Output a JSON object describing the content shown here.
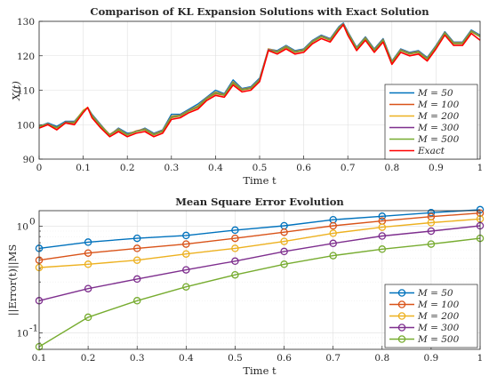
{
  "chart_data": [
    {
      "type": "line",
      "title": "Comparison of KL Expansion Solutions with Exact Solution",
      "xlabel": "Time t",
      "ylabel": "X(t)",
      "xlim": [
        0,
        1
      ],
      "ylim": [
        90,
        130
      ],
      "x_ticks": [
        "0",
        "0.1",
        "0.2",
        "0.3",
        "0.4",
        "0.5",
        "0.6",
        "0.7",
        "0.8",
        "0.9",
        "1"
      ],
      "y_ticks": [
        "90",
        "100",
        "110",
        "120",
        "130"
      ],
      "grid": true,
      "legend_position": "bottom-right",
      "x": [
        0,
        0.02,
        0.04,
        0.06,
        0.08,
        0.1,
        0.11,
        0.12,
        0.14,
        0.16,
        0.18,
        0.2,
        0.22,
        0.24,
        0.26,
        0.28,
        0.3,
        0.32,
        0.34,
        0.36,
        0.38,
        0.4,
        0.42,
        0.44,
        0.46,
        0.48,
        0.5,
        0.52,
        0.54,
        0.56,
        0.58,
        0.6,
        0.62,
        0.64,
        0.66,
        0.68,
        0.69,
        0.7,
        0.72,
        0.74,
        0.76,
        0.78,
        0.8,
        0.82,
        0.84,
        0.86,
        0.88,
        0.9,
        0.92,
        0.94,
        0.96,
        0.98,
        1.0
      ],
      "series": [
        {
          "name": "M = 50",
          "color": "#0072BD",
          "values": [
            99.5,
            100.5,
            99.5,
            101,
            101,
            104,
            105,
            103,
            100,
            97,
            99,
            97.5,
            98,
            99,
            97.5,
            98.5,
            103,
            103,
            104.5,
            106,
            108,
            110,
            109,
            113,
            110.5,
            111,
            113.5,
            122,
            121.5,
            123,
            121.5,
            122,
            124.5,
            126,
            125,
            128.5,
            129.5,
            127,
            122.5,
            125.5,
            122,
            125,
            118.5,
            122,
            121,
            121.5,
            119.5,
            123,
            127,
            124,
            124,
            127.5,
            126
          ]
        },
        {
          "name": "M = 100",
          "color": "#D95319",
          "values": [
            99.5,
            100,
            99,
            100.5,
            100.5,
            104,
            105,
            102.5,
            99.5,
            97,
            98.5,
            97,
            98,
            98.5,
            97,
            98,
            102,
            102.5,
            104,
            105,
            107.5,
            109,
            108.5,
            112,
            110,
            110.5,
            113,
            122,
            121,
            122.5,
            121,
            121.5,
            124,
            125.5,
            124.5,
            128,
            129,
            126.5,
            122,
            125,
            121.5,
            124.5,
            118,
            121.5,
            120.5,
            121,
            119,
            122.5,
            126.5,
            123.5,
            123.5,
            127,
            125.5
          ]
        },
        {
          "name": "M = 200",
          "color": "#EDB120",
          "values": [
            99.5,
            100.3,
            99.2,
            100.8,
            100.8,
            104.2,
            105,
            102.8,
            99.8,
            97.2,
            98.8,
            97.2,
            98.2,
            98.8,
            97.3,
            98.3,
            102.5,
            102.8,
            104.2,
            105.5,
            107.8,
            109.5,
            108.8,
            112.5,
            110.3,
            110.8,
            113.2,
            122,
            121.3,
            122.8,
            121.3,
            121.8,
            124.3,
            125.8,
            124.8,
            128.3,
            129.3,
            126.8,
            122.3,
            125.3,
            121.8,
            124.8,
            118.3,
            121.8,
            120.8,
            121.3,
            119.3,
            122.8,
            126.8,
            123.8,
            123.8,
            127.3,
            125.8
          ]
        },
        {
          "name": "M = 300",
          "color": "#7E2F8E",
          "values": [
            99.5,
            100.2,
            99.2,
            100.7,
            100.7,
            104,
            104.8,
            102.7,
            99.7,
            97.1,
            98.7,
            97.1,
            98.1,
            98.7,
            97.2,
            98.2,
            102.3,
            102.7,
            104.1,
            105.3,
            107.7,
            109.3,
            108.7,
            112.3,
            110.2,
            110.7,
            113.1,
            121.8,
            121.2,
            122.7,
            121.2,
            121.7,
            124.2,
            125.7,
            124.7,
            128.2,
            129.2,
            126.7,
            122.2,
            125.2,
            121.7,
            124.7,
            118.2,
            121.7,
            120.7,
            121.2,
            119.2,
            122.7,
            126.7,
            123.7,
            123.7,
            127.2,
            125.7
          ]
        },
        {
          "name": "M = 500",
          "color": "#77AC30",
          "values": [
            99.5,
            100.1,
            99.1,
            100.6,
            100.6,
            104,
            104.9,
            102.6,
            99.6,
            97,
            98.6,
            97,
            98,
            98.6,
            97.1,
            98.1,
            102.2,
            102.6,
            104,
            105.2,
            107.6,
            109.2,
            108.6,
            112.2,
            110.1,
            110.6,
            113,
            121.6,
            121.1,
            122.6,
            121.1,
            121.6,
            124.1,
            125.6,
            124.6,
            128.1,
            129.1,
            126.6,
            122.1,
            125.1,
            121.6,
            124.6,
            118.1,
            121.6,
            120.6,
            121.1,
            119.1,
            122.6,
            126.6,
            123.6,
            123.6,
            127.1,
            125.6
          ]
        },
        {
          "name": "Exact",
          "color": "#FF0000",
          "values": [
            99,
            100,
            98.5,
            100.5,
            100,
            103.5,
            105,
            102,
            99,
            96.5,
            98,
            96.5,
            97.5,
            98,
            96.5,
            97.5,
            101.5,
            102,
            103.5,
            104.5,
            107,
            108.5,
            108,
            111.5,
            109.5,
            110,
            112.5,
            121.5,
            120.5,
            122,
            120.5,
            121,
            123.5,
            125,
            124,
            127.5,
            129,
            126,
            121.5,
            124.5,
            121,
            124,
            117.5,
            121,
            120,
            120.5,
            118.5,
            122,
            126,
            123,
            123,
            126.5,
            124.5
          ]
        }
      ]
    },
    {
      "type": "line",
      "title": "Mean Square Error Evolution",
      "xlabel": "Time t",
      "ylabel": "||Error(t)||MS",
      "y_scale": "log",
      "xlim": [
        0.1,
        1
      ],
      "ylim": [
        0.07,
        1.4
      ],
      "x_ticks": [
        "0.1",
        "0.2",
        "0.3",
        "0.4",
        "0.5",
        "0.6",
        "0.7",
        "0.8",
        "0.9",
        "1"
      ],
      "y_ticks": [
        "10",
        "10"
      ],
      "y_tick_exponents": [
        "-1",
        "0"
      ],
      "grid": true,
      "legend_position": "bottom-right",
      "markers": "circle",
      "x": [
        0.1,
        0.2,
        0.3,
        0.4,
        0.5,
        0.6,
        0.7,
        0.8,
        0.9,
        1.0
      ],
      "series": [
        {
          "name": "M = 50",
          "color": "#0072BD",
          "values": [
            0.62,
            0.71,
            0.77,
            0.82,
            0.92,
            1.01,
            1.15,
            1.24,
            1.34,
            1.43
          ]
        },
        {
          "name": "M = 100",
          "color": "#D95319",
          "values": [
            0.48,
            0.56,
            0.62,
            0.68,
            0.77,
            0.88,
            1.01,
            1.12,
            1.23,
            1.33
          ]
        },
        {
          "name": "M = 200",
          "color": "#EDB120",
          "values": [
            0.41,
            0.44,
            0.48,
            0.55,
            0.62,
            0.72,
            0.86,
            0.98,
            1.08,
            1.17
          ]
        },
        {
          "name": "M = 300",
          "color": "#7E2F8E",
          "values": [
            0.2,
            0.26,
            0.32,
            0.39,
            0.47,
            0.58,
            0.69,
            0.81,
            0.9,
            1.01
          ]
        },
        {
          "name": "M = 500",
          "color": "#77AC30",
          "values": [
            0.074,
            0.14,
            0.2,
            0.27,
            0.35,
            0.44,
            0.53,
            0.61,
            0.68,
            0.77
          ]
        }
      ]
    }
  ]
}
